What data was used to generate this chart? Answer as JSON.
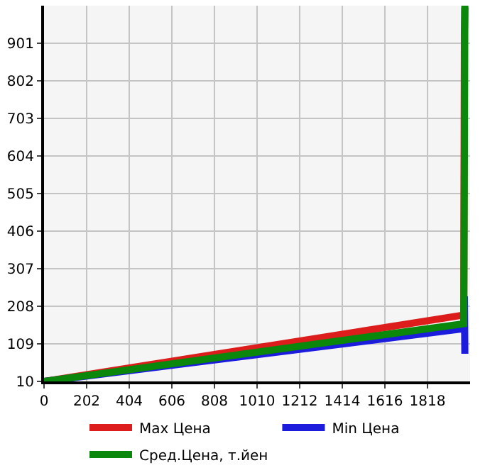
{
  "chart_data": {
    "type": "line",
    "x": [
      0,
      1990,
      1993,
      1995
    ],
    "series": [
      {
        "name": "Max Цена",
        "color": "#dd1c1c",
        "values": [
          10,
          185,
          930,
          995
        ]
      },
      {
        "name": "Min Цена",
        "color": "#1c1cdd",
        "values": [
          10,
          149,
          234,
          83
        ]
      },
      {
        "name": "Сред.Цена, т.йен",
        "color": "#0b870b",
        "values": [
          10,
          162,
          600,
          1000
        ]
      }
    ],
    "xlim": [
      0,
      2020
    ],
    "xticks": [
      0,
      202,
      404,
      606,
      808,
      1010,
      1212,
      1414,
      1616,
      1818
    ],
    "ylim": [
      10,
      1000
    ],
    "yticks": [
      10,
      109,
      208,
      307,
      406,
      505,
      604,
      703,
      802,
      901
    ],
    "grid": true,
    "legend": "bottom",
    "marker": "none",
    "line_style": "solid"
  }
}
